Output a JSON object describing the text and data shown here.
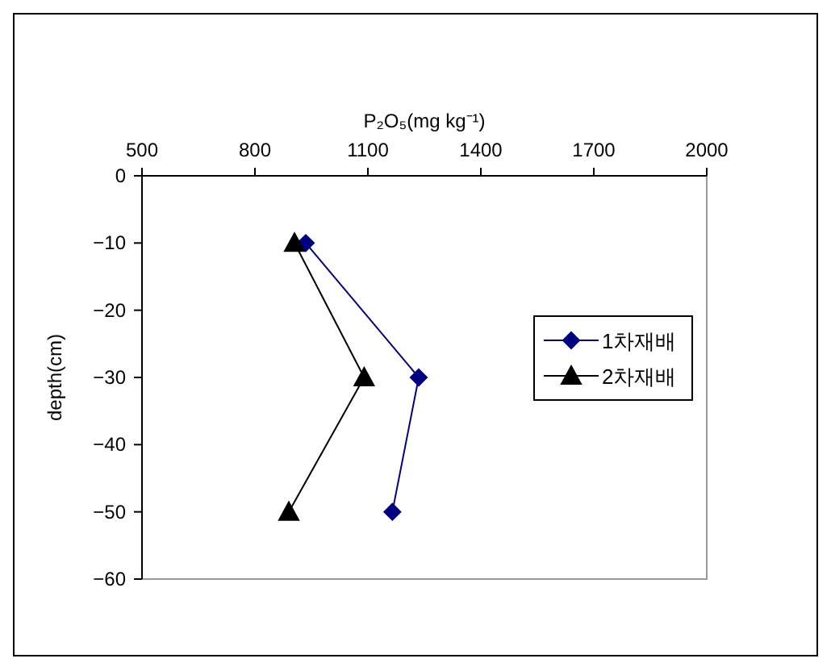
{
  "chart_data": {
    "type": "line",
    "xlabel": "P₂O₅(mg kg⁻¹)",
    "ylabel": "depth(cm)",
    "xlim": [
      500,
      2000
    ],
    "xticks": [
      500,
      800,
      1100,
      1400,
      1700,
      2000
    ],
    "ylim": [
      -60,
      0
    ],
    "yticks": [
      -60,
      -50,
      -40,
      -30,
      -20,
      -10,
      0
    ],
    "grid": false,
    "legend": "right",
    "line_style": "solid",
    "series": [
      {
        "name": "1차재배",
        "color": "#000080",
        "marker": "diamond",
        "x": [
          935,
          1235,
          1165
        ],
        "values": [
          -10,
          -30,
          -50
        ]
      },
      {
        "name": "2차재배",
        "color": "#000000",
        "marker": "triangle",
        "x": [
          905,
          1090,
          890
        ],
        "values": [
          -10,
          -30,
          -50
        ]
      }
    ]
  }
}
